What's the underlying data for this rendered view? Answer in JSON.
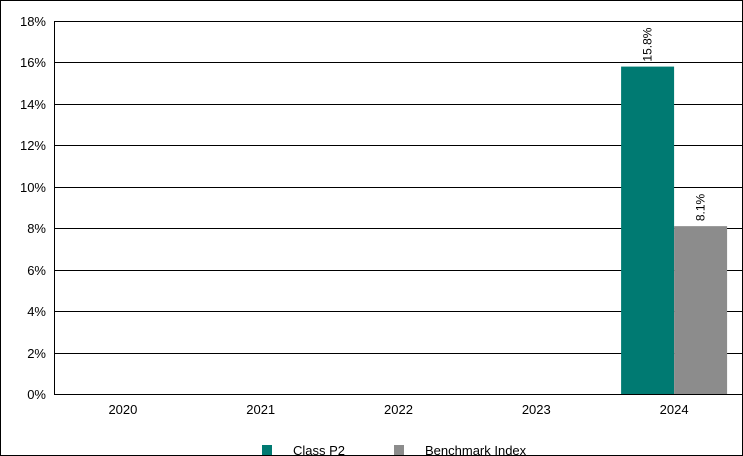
{
  "chart_data": {
    "type": "bar",
    "categories": [
      "2020",
      "2021",
      "2022",
      "2023",
      "2024"
    ],
    "series": [
      {
        "name": "Class P2",
        "color": "#007a72",
        "values": [
          null,
          null,
          null,
          null,
          15.8
        ],
        "labels": [
          null,
          null,
          null,
          null,
          "15.8%"
        ]
      },
      {
        "name": "Benchmark Index",
        "color": "#8c8c8c",
        "values": [
          null,
          null,
          null,
          null,
          8.1
        ],
        "labels": [
          null,
          null,
          null,
          null,
          "8.1%"
        ]
      }
    ],
    "ylim": [
      0,
      18
    ],
    "yticks": [
      0,
      2,
      4,
      6,
      8,
      10,
      12,
      14,
      16,
      18
    ],
    "ytick_labels": [
      "0%",
      "2%",
      "4%",
      "6%",
      "8%",
      "10%",
      "12%",
      "14%",
      "16%",
      "18%"
    ],
    "grid": true,
    "legend_position": "bottom-center",
    "title": "",
    "xlabel": "",
    "ylabel": ""
  }
}
